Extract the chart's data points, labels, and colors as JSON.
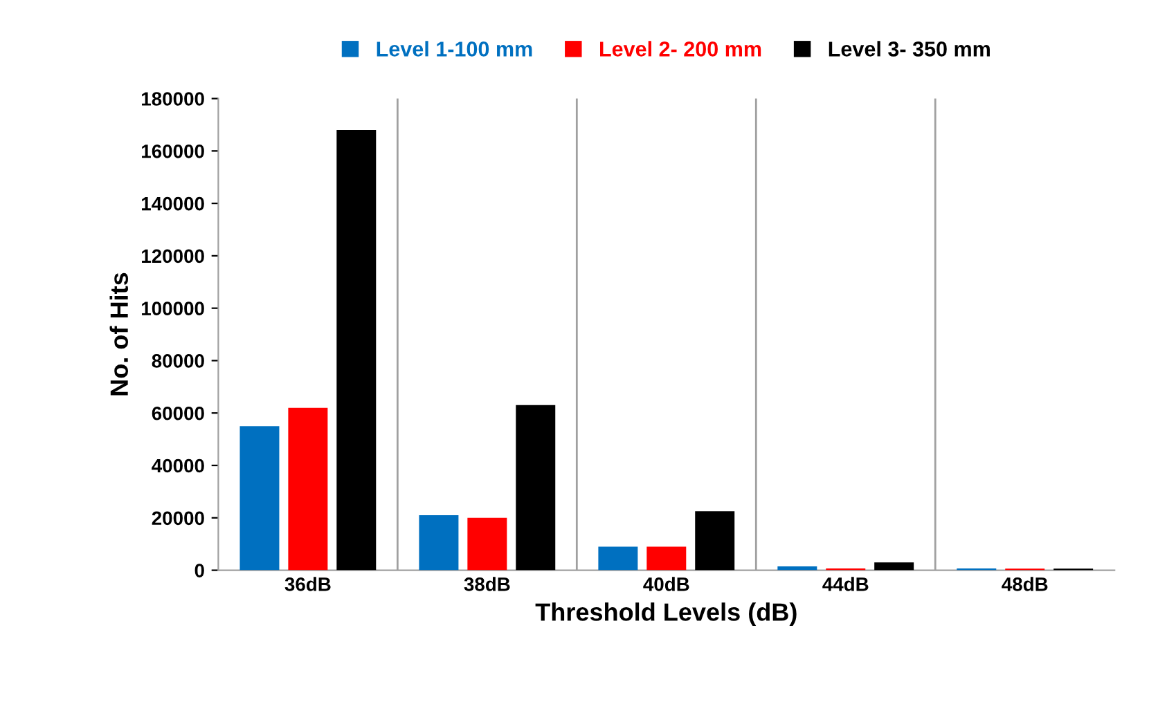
{
  "chart_data": {
    "type": "bar",
    "xlabel": "Threshold Levels (dB)",
    "ylabel": "No. of Hits",
    "categories": [
      "36dB",
      "38dB",
      "40dB",
      "44dB",
      "48dB"
    ],
    "series": [
      {
        "name": "Level 1-100 mm",
        "color": "#0070c0",
        "values": [
          55000,
          21000,
          9000,
          1500,
          700
        ]
      },
      {
        "name": "Level 2- 200 mm",
        "color": "#ff0000",
        "values": [
          62000,
          20000,
          9000,
          700,
          600
        ]
      },
      {
        "name": "Level 3- 350 mm",
        "color": "#000000",
        "values": [
          168000,
          63000,
          22500,
          3000,
          600
        ]
      }
    ],
    "ylim": [
      0,
      180000
    ],
    "yticks": [
      0,
      20000,
      40000,
      60000,
      80000,
      100000,
      120000,
      140000,
      160000,
      180000
    ],
    "grid": "x",
    "legend": "top"
  }
}
